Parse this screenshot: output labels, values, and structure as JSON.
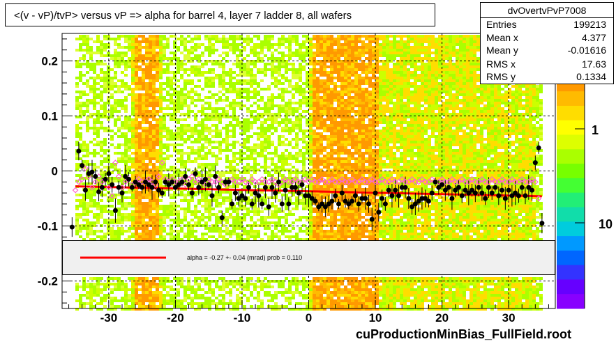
{
  "title": "<(v - vP)/tvP> versus   vP => alpha for barrel 4, layer 7 ladder 8, all wafers",
  "stats": {
    "name": "dvOvertvPvP7008",
    "rows": [
      {
        "key": "Entries",
        "value": "199213"
      },
      {
        "key": "Mean x",
        "value": "4.377"
      },
      {
        "key": "Mean y",
        "value": "-0.01616"
      },
      {
        "key": "RMS x",
        "value": "17.63"
      },
      {
        "key": "RMS y",
        "value": "0.1334"
      }
    ]
  },
  "legend": {
    "text": "alpha =   -0.27 +-  0.04 (mrad) prob = 0.110",
    "line_color": "#ff0000"
  },
  "footer": "cuProductionMinBias_FullField.root",
  "colorbar": {
    "labels": [
      "1",
      "10"
    ],
    "colors": [
      "#ff0000",
      "#ff3300",
      "#ff6600",
      "#ff9900",
      "#ffbb00",
      "#ffdd00",
      "#ffff00",
      "#ddff00",
      "#aaff00",
      "#77ff00",
      "#44ff33",
      "#22ee77",
      "#11ddaa",
      "#00ccdd",
      "#0099ff",
      "#0066ff",
      "#3333ff",
      "#6600ff",
      "#8800ff"
    ]
  },
  "chart_data": {
    "type": "scatter",
    "title": "<(v - vP)/tvP> versus   vP => alpha for barrel 4, layer 7 ladder 8, all wafers",
    "xlim": [
      -37,
      37
    ],
    "ylim": [
      -0.25,
      0.25
    ],
    "xticks": [
      -30,
      -20,
      -10,
      0,
      10,
      20,
      30
    ],
    "xtick_labels": [
      "-30",
      "-20",
      "-10",
      "0",
      "10",
      "20",
      "30"
    ],
    "yticks": [
      -0.2,
      -0.1,
      0,
      0.1,
      0.2
    ],
    "ytick_labels": [
      "-0.2",
      "-0.1",
      "0",
      "0.1",
      "0.2"
    ],
    "grid": true,
    "fit": {
      "x": [
        -35,
        35
      ],
      "y": [
        -0.028,
        -0.046
      ],
      "color": "#ff0000"
    },
    "black_points": [
      [
        -35.5,
        -0.102
      ],
      [
        -34.5,
        0.036
      ],
      [
        -34,
        0.01
      ],
      [
        -33.5,
        -0.035
      ],
      [
        -33,
        -0.005
      ],
      [
        -32.5,
        -0.002
      ],
      [
        -32,
        -0.01
      ],
      [
        -31.5,
        -0.038
      ],
      [
        -31,
        -0.03
      ],
      [
        -30.5,
        -0.015
      ],
      [
        -30,
        -0.005
      ],
      [
        -29.5,
        -0.025
      ],
      [
        -29,
        -0.072
      ],
      [
        -28.5,
        -0.03
      ],
      [
        -28,
        -0.04
      ],
      [
        -27.5,
        -0.01
      ],
      [
        -27,
        -0.015
      ],
      [
        -26.5,
        -0.03
      ],
      [
        -26,
        -0.02
      ],
      [
        -25.5,
        -0.025
      ],
      [
        -25,
        -0.03
      ],
      [
        -24.5,
        -0.02
      ],
      [
        -24,
        -0.025
      ],
      [
        -23.5,
        -0.03
      ],
      [
        -23,
        -0.02
      ],
      [
        -22.5,
        -0.035
      ],
      [
        -22,
        -0.04
      ],
      [
        -21.5,
        -0.02
      ],
      [
        -21,
        -0.025
      ],
      [
        -20.5,
        -0.02
      ],
      [
        -20,
        -0.03
      ],
      [
        -19.5,
        -0.025
      ],
      [
        -19,
        -0.02
      ],
      [
        -18.5,
        -0.01
      ],
      [
        -18,
        -0.025
      ],
      [
        -17.5,
        -0.04
      ],
      [
        -17,
        -0.005
      ],
      [
        -16.5,
        -0.03
      ],
      [
        -16,
        -0.02
      ],
      [
        -15.5,
        -0.015
      ],
      [
        -15,
        -0.025
      ],
      [
        -14.5,
        -0.045
      ],
      [
        -14,
        -0.01
      ],
      [
        -13.5,
        -0.03
      ],
      [
        -13,
        -0.085
      ],
      [
        -12.5,
        -0.02
      ],
      [
        -12,
        -0.02
      ],
      [
        -11.5,
        -0.06
      ],
      [
        -11,
        -0.04
      ],
      [
        -10.5,
        -0.05
      ],
      [
        -10,
        -0.045
      ],
      [
        -9.5,
        -0.05
      ],
      [
        -9,
        -0.03
      ],
      [
        -8.5,
        -0.06
      ],
      [
        -8,
        -0.04
      ],
      [
        -7.5,
        -0.045
      ],
      [
        -7,
        -0.06
      ],
      [
        -6.5,
        -0.03
      ],
      [
        -6,
        -0.065
      ],
      [
        -5.5,
        -0.03
      ],
      [
        -5,
        -0.04
      ],
      [
        -4.5,
        -0.02
      ],
      [
        -4,
        -0.06
      ],
      [
        -3.5,
        -0.035
      ],
      [
        -3,
        -0.06
      ],
      [
        -2.5,
        -0.03
      ],
      [
        -2,
        -0.03
      ],
      [
        -1.5,
        -0.04
      ],
      [
        -1,
        -0.025
      ],
      [
        -0.5,
        -0.045
      ],
      [
        0,
        -0.045
      ],
      [
        0.5,
        -0.05
      ],
      [
        1,
        -0.055
      ],
      [
        1.5,
        -0.065
      ],
      [
        2,
        -0.06
      ],
      [
        2.5,
        -0.065
      ],
      [
        3,
        -0.06
      ],
      [
        3.5,
        -0.055
      ],
      [
        4,
        -0.045
      ],
      [
        4.5,
        -0.06
      ],
      [
        5,
        -0.04
      ],
      [
        5.5,
        -0.055
      ],
      [
        6,
        -0.06
      ],
      [
        6.5,
        -0.055
      ],
      [
        7,
        -0.045
      ],
      [
        7.5,
        -0.06
      ],
      [
        8,
        -0.05
      ],
      [
        8.5,
        -0.05
      ],
      [
        9,
        -0.06
      ],
      [
        9.5,
        -0.088
      ],
      [
        10,
        -0.04
      ],
      [
        10.5,
        -0.075
      ],
      [
        11,
        -0.05
      ],
      [
        11.5,
        -0.06
      ],
      [
        12,
        -0.035
      ],
      [
        12.5,
        -0.045
      ],
      [
        13,
        -0.035
      ],
      [
        13.5,
        -0.045
      ],
      [
        14,
        -0.03
      ],
      [
        14.5,
        -0.03
      ],
      [
        15,
        -0.05
      ],
      [
        15.5,
        -0.065
      ],
      [
        16,
        -0.06
      ],
      [
        16.5,
        -0.055
      ],
      [
        17,
        -0.05
      ],
      [
        17.5,
        -0.05
      ],
      [
        18,
        -0.055
      ],
      [
        18.5,
        -0.04
      ],
      [
        19,
        -0.02
      ],
      [
        19.5,
        -0.03
      ],
      [
        20,
        -0.025
      ],
      [
        20.5,
        -0.035
      ],
      [
        21,
        -0.03
      ],
      [
        21.5,
        -0.05
      ],
      [
        22,
        -0.035
      ],
      [
        22.5,
        -0.03
      ],
      [
        23,
        -0.045
      ],
      [
        23.5,
        -0.035
      ],
      [
        24,
        -0.04
      ],
      [
        24.5,
        -0.035
      ],
      [
        25,
        -0.04
      ],
      [
        25.5,
        -0.03
      ],
      [
        26,
        -0.04
      ],
      [
        26.5,
        -0.05
      ],
      [
        27,
        -0.03
      ],
      [
        27.5,
        -0.04
      ],
      [
        28,
        -0.03
      ],
      [
        28.5,
        -0.045
      ],
      [
        29,
        -0.035
      ],
      [
        29.5,
        -0.05
      ],
      [
        30,
        -0.035
      ],
      [
        30.5,
        -0.045
      ],
      [
        31,
        -0.04
      ],
      [
        31.5,
        -0.045
      ],
      [
        32,
        -0.03
      ],
      [
        32.5,
        -0.045
      ],
      [
        33,
        -0.03
      ],
      [
        33.5,
        -0.035
      ],
      [
        34,
        0.015
      ],
      [
        34.5,
        0.042
      ],
      [
        35,
        -0.095
      ]
    ],
    "open_points": [
      [
        -35,
        -0.035
      ],
      [
        -34.5,
        -0.02
      ],
      [
        -34,
        -0.015
      ],
      [
        -33.5,
        0.005
      ],
      [
        -33,
        -0.01
      ],
      [
        -32.5,
        -0.03
      ],
      [
        -32,
        -0.02
      ],
      [
        -31.5,
        -0.01
      ],
      [
        -31,
        -0.02
      ],
      [
        -30.5,
        -0.015
      ],
      [
        -30,
        -0.03
      ],
      [
        -29.5,
        -0.045
      ],
      [
        -29,
        0.015
      ],
      [
        -28.5,
        -0.01
      ],
      [
        -28,
        -0.03
      ],
      [
        -27.5,
        -0.02
      ],
      [
        -27,
        -0.015
      ],
      [
        -26.5,
        -0.025
      ],
      [
        -26,
        -0.02
      ],
      [
        -25.5,
        -0.015
      ],
      [
        -25,
        -0.02
      ],
      [
        -24.5,
        -0.02
      ],
      [
        -24,
        -0.015
      ],
      [
        -23.5,
        -0.02
      ],
      [
        -23,
        -0.025
      ],
      [
        -22.5,
        -0.01
      ],
      [
        -22,
        0.015
      ],
      [
        -21.5,
        -0.015
      ],
      [
        -21,
        -0.02
      ],
      [
        -20.5,
        -0.015
      ],
      [
        -20,
        -0.02
      ],
      [
        -19.5,
        -0.02
      ],
      [
        -19,
        -0.015
      ],
      [
        -18.5,
        -0.025
      ],
      [
        -18,
        -0.015
      ],
      [
        -17.5,
        -0.01
      ],
      [
        -17,
        -0.02
      ],
      [
        -16.5,
        -0.015
      ],
      [
        -16,
        -0.02
      ],
      [
        -15.5,
        -0.025
      ],
      [
        -15,
        -0.015
      ],
      [
        -14.5,
        -0.02
      ],
      [
        -14,
        -0.02
      ],
      [
        -13.5,
        -0.015
      ],
      [
        -13,
        -0.02
      ],
      [
        -12.5,
        -0.025
      ],
      [
        -12,
        -0.02
      ],
      [
        -11.5,
        -0.015
      ],
      [
        -11,
        -0.02
      ],
      [
        -10.5,
        -0.02
      ],
      [
        -10,
        -0.015
      ],
      [
        -9.5,
        -0.02
      ],
      [
        -9,
        -0.025
      ],
      [
        -8.5,
        -0.015
      ],
      [
        -8,
        -0.02
      ],
      [
        -7.5,
        -0.02
      ],
      [
        -7,
        -0.015
      ],
      [
        -6.5,
        -0.02
      ],
      [
        -6,
        -0.02
      ],
      [
        -5.5,
        -0.015
      ],
      [
        -5,
        -0.02
      ],
      [
        -4.5,
        -0.025
      ],
      [
        -4,
        -0.02
      ],
      [
        -3.5,
        -0.015
      ],
      [
        -3,
        -0.02
      ],
      [
        -2.5,
        -0.02
      ],
      [
        -2,
        -0.015
      ],
      [
        -1.5,
        -0.02
      ],
      [
        -1,
        -0.02
      ],
      [
        -0.5,
        -0.015
      ],
      [
        0,
        -0.02
      ],
      [
        0.5,
        -0.015
      ],
      [
        1,
        -0.02
      ],
      [
        1.5,
        -0.02
      ],
      [
        2,
        -0.015
      ],
      [
        2.5,
        -0.02
      ],
      [
        3,
        -0.02
      ],
      [
        3.5,
        -0.015
      ],
      [
        4,
        -0.02
      ],
      [
        4.5,
        -0.02
      ],
      [
        5,
        -0.015
      ],
      [
        5.5,
        -0.02
      ],
      [
        6,
        -0.02
      ],
      [
        6.5,
        -0.015
      ],
      [
        7,
        -0.02
      ],
      [
        7.5,
        -0.02
      ],
      [
        8,
        -0.015
      ],
      [
        8.5,
        -0.02
      ],
      [
        9,
        -0.02
      ],
      [
        9.5,
        -0.015
      ],
      [
        10,
        -0.02
      ],
      [
        10.5,
        -0.02
      ],
      [
        11,
        -0.015
      ],
      [
        11.5,
        -0.02
      ],
      [
        12,
        -0.02
      ],
      [
        12.5,
        -0.015
      ],
      [
        13,
        -0.02
      ],
      [
        13.5,
        -0.02
      ],
      [
        14,
        -0.015
      ],
      [
        14.5,
        -0.02
      ],
      [
        15,
        -0.02
      ],
      [
        15.5,
        -0.015
      ],
      [
        16,
        -0.02
      ],
      [
        16.5,
        -0.02
      ],
      [
        17,
        -0.015
      ],
      [
        17.5,
        -0.02
      ],
      [
        18,
        -0.02
      ],
      [
        18.5,
        -0.015
      ],
      [
        19,
        -0.02
      ],
      [
        19.5,
        -0.02
      ],
      [
        20,
        -0.015
      ],
      [
        20.5,
        -0.02
      ],
      [
        21,
        -0.02
      ],
      [
        21.5,
        -0.015
      ],
      [
        22,
        -0.02
      ],
      [
        22.5,
        -0.02
      ],
      [
        23,
        -0.015
      ],
      [
        23.5,
        -0.02
      ],
      [
        24,
        -0.02
      ],
      [
        24.5,
        -0.015
      ],
      [
        25,
        -0.02
      ],
      [
        25.5,
        -0.02
      ],
      [
        26,
        -0.015
      ],
      [
        26.5,
        -0.02
      ],
      [
        27,
        -0.02
      ],
      [
        27.5,
        -0.015
      ],
      [
        28,
        -0.02
      ],
      [
        28.5,
        -0.02
      ],
      [
        29,
        -0.015
      ],
      [
        29.5,
        -0.02
      ],
      [
        30,
        -0.02
      ],
      [
        30.5,
        -0.015
      ],
      [
        31,
        -0.02
      ],
      [
        31.5,
        -0.02
      ],
      [
        32,
        -0.015
      ],
      [
        32.5,
        -0.02
      ],
      [
        33,
        -0.02
      ],
      [
        33.5,
        -0.015
      ],
      [
        34,
        -0.02
      ],
      [
        34.5,
        -0.05
      ]
    ]
  }
}
